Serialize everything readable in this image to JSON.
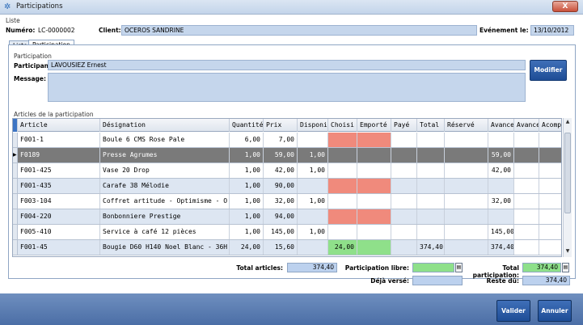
{
  "window": {
    "title": "Participations",
    "close_label": "X"
  },
  "header": {
    "group_label": "Liste",
    "numero_label": "Numéro:",
    "numero_value": "LC-0000002",
    "client_label": "Client:",
    "client_value": "OCEROS SANDRINE",
    "event_label": "Evénement le:",
    "event_value": "13/10/2012"
  },
  "tabs": [
    {
      "label": "Liste"
    },
    {
      "label": "Participation"
    }
  ],
  "participation": {
    "group_label": "Participation",
    "participant_label": "Participant:",
    "participant_value": "LAVOUSIEZ Ernest",
    "message_label": "Message:",
    "message_value": "",
    "modify_label": "Modifier"
  },
  "articles": {
    "group_label": "Articles de la participation",
    "columns": [
      "Article",
      "Désignation",
      "Quantité",
      "Prix",
      "Disponi",
      "Choisi",
      "Emporté",
      "Payé",
      "Total",
      "Réservé",
      "Avance",
      "Avance",
      "Acompt"
    ],
    "rows": [
      {
        "article": "F001-1",
        "designation": "Boule 6 CMS Rose Pale",
        "quantite": "6,00",
        "prix": "7,00",
        "dispo": "",
        "choisi": "",
        "emporte": "",
        "paye": "",
        "total": "",
        "reserve": "",
        "avance1": "",
        "avance2": "",
        "acompte": "",
        "choisi_color": "#f08a7c",
        "emporte_color": "#f08a7c",
        "state": "normal"
      },
      {
        "article": "F0189",
        "designation": "Presse Agrumes",
        "quantite": "1,00",
        "prix": "59,00",
        "dispo": "1,00",
        "choisi": "",
        "emporte": "",
        "paye": "",
        "total": "",
        "reserve": "",
        "avance1": "59,00",
        "avance2": "",
        "acompte": "",
        "choisi_color": "",
        "emporte_color": "",
        "state": "selected"
      },
      {
        "article": "F001-425",
        "designation": "Vase 20 Drop",
        "quantite": "1,00",
        "prix": "42,00",
        "dispo": "1,00",
        "choisi": "",
        "emporte": "",
        "paye": "",
        "total": "",
        "reserve": "",
        "avance1": "42,00",
        "avance2": "",
        "acompte": "",
        "choisi_color": "#ffffff",
        "emporte_color": "#ffffff",
        "state": "normal"
      },
      {
        "article": "F001-435",
        "designation": "Carafe 38 Mélodie",
        "quantite": "1,00",
        "prix": "90,00",
        "dispo": "",
        "choisi": "",
        "emporte": "",
        "paye": "",
        "total": "",
        "reserve": "",
        "avance1": "",
        "avance2": "",
        "acompte": "",
        "choisi_color": "#f08a7c",
        "emporte_color": "#f08a7c",
        "state": "normal"
      },
      {
        "article": "F003-104",
        "designation": "Coffret artitude - Optimisme - O",
        "quantite": "1,00",
        "prix": "32,00",
        "dispo": "1,00",
        "choisi": "",
        "emporte": "",
        "paye": "",
        "total": "",
        "reserve": "",
        "avance1": "32,00",
        "avance2": "",
        "acompte": "",
        "choisi_color": "#ffffff",
        "emporte_color": "#ffffff",
        "state": "normal"
      },
      {
        "article": "F004-220",
        "designation": "Bonbonniere Prestige",
        "quantite": "1,00",
        "prix": "94,00",
        "dispo": "",
        "choisi": "",
        "emporte": "",
        "paye": "",
        "total": "",
        "reserve": "",
        "avance1": "",
        "avance2": "",
        "acompte": "",
        "choisi_color": "#f08a7c",
        "emporte_color": "#f08a7c",
        "state": "normal"
      },
      {
        "article": "F005-410",
        "designation": "Service à café 12 pièces",
        "quantite": "1,00",
        "prix": "145,00",
        "dispo": "1,00",
        "choisi": "",
        "emporte": "",
        "paye": "",
        "total": "",
        "reserve": "",
        "avance1": "145,00",
        "avance2": "",
        "acompte": "",
        "choisi_color": "#ffffff",
        "emporte_color": "#ffffff",
        "state": "normal"
      },
      {
        "article": "F001-45",
        "designation": "Bougie D60 H140 Noel Blanc - 36H",
        "quantite": "24,00",
        "prix": "15,60",
        "dispo": "",
        "choisi": "24,00",
        "emporte": "",
        "paye": "",
        "total": "374,40",
        "reserve": "",
        "avance1": "374,40",
        "avance2": "",
        "acompte": "",
        "choisi_color": "#8fe08a",
        "emporte_color": "#8fe08a",
        "state": "normal"
      }
    ]
  },
  "totals": {
    "total_articles_label": "Total articles:",
    "total_articles_value": "374,40",
    "participation_libre_label": "Participation libre:",
    "participation_libre_value": "",
    "total_participation_label": "Total participation:",
    "total_participation_value": "374,40",
    "deja_verse_label": "Déjà versé:",
    "deja_verse_value": "",
    "reste_du_label": "Reste dû:",
    "reste_du_value": "374,40"
  },
  "footer": {
    "validate_label": "Valider",
    "cancel_label": "Annuler"
  }
}
